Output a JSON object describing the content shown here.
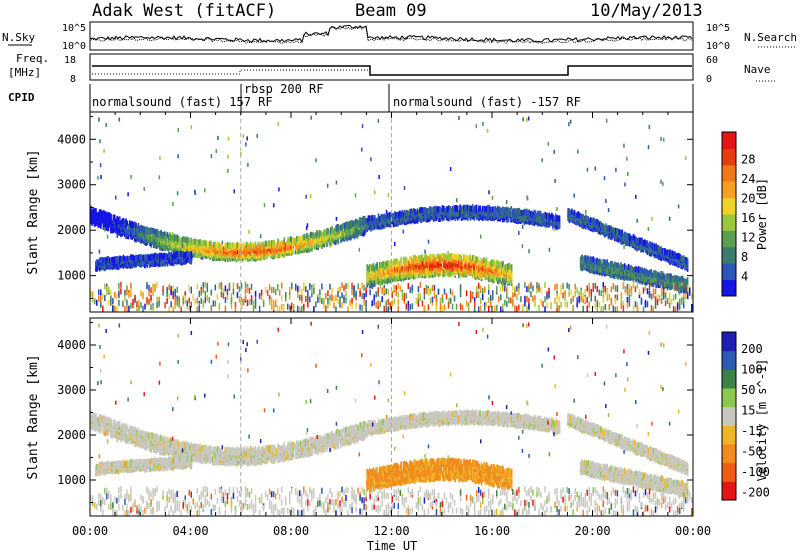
{
  "header": {
    "station": "Adak West (fitACF)",
    "beam": "Beam 09",
    "date": "10/May/2013"
  },
  "top_panels": {
    "nsky": {
      "label": "N.Sky",
      "tick_top": "10^5",
      "tick_bottom": "10^0",
      "right_label": "N.Search",
      "right_tick_top": "10^5",
      "right_tick_bottom": "10^0"
    },
    "freq": {
      "label_line1": "Freq.",
      "label_line2": "[MHz]",
      "tick_top": "18",
      "tick_bottom": "8",
      "right_label": "Nave",
      "right_tick_top": "60",
      "right_tick_bottom": "0"
    },
    "cpid": {
      "label": "CPID",
      "segments": [
        "normalsound (fast) 157 RF",
        "rbsp 200 RF",
        "normalsound (fast) -157 RF"
      ]
    }
  },
  "chart_data": [
    {
      "type": "heatmap",
      "name": "power",
      "ylabel": "Slant Range [km]",
      "ylim": [
        200,
        4600
      ],
      "yticks": [
        1000,
        2000,
        3000,
        4000
      ],
      "xlim": [
        0,
        24
      ],
      "colorbar": {
        "label": "Power [dB]",
        "ticks": [
          "4",
          "8",
          "12",
          "16",
          "20",
          "24",
          "28"
        ],
        "colors": [
          "#1414e6",
          "#2d55b4",
          "#3c7d6e",
          "#5aa050",
          "#9bc83c",
          "#f0d228",
          "#f5a020",
          "#f07818",
          "#e63c10",
          "#e61414"
        ]
      }
    },
    {
      "type": "heatmap",
      "name": "velocity",
      "ylabel": "Slant Range [km]",
      "xlabel": "Time UT",
      "ylim": [
        200,
        4600
      ],
      "yticks": [
        1000,
        2000,
        3000,
        4000
      ],
      "xlim": [
        0,
        24
      ],
      "xticks": [
        "00:00",
        "04:00",
        "08:00",
        "12:00",
        "16:00",
        "20:00",
        "00:00"
      ],
      "colorbar": {
        "label": "Velocity [m s^-1]",
        "ticks": [
          "200",
          "100",
          "50",
          "15",
          "-15",
          "-50",
          "-100",
          "-200"
        ],
        "colors": [
          "#1e1eb4",
          "#2d5ab4",
          "#3c8246",
          "#8cc84b",
          "#c8c8c0",
          "#f0b428",
          "#f08c1e",
          "#f05a14",
          "#e61414"
        ]
      }
    }
  ]
}
